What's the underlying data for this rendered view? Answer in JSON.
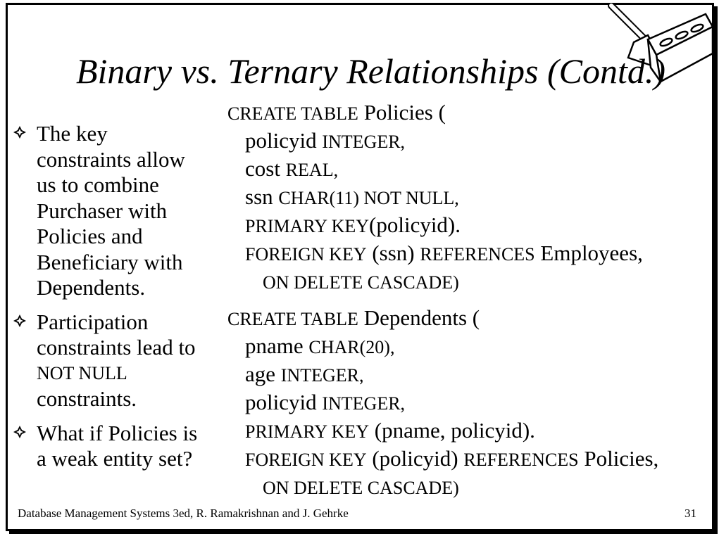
{
  "slide": {
    "title": "Binary vs. Ternary Relationships (Contd.)",
    "bullets": [
      {
        "lines": [
          "The key",
          "constraints allow",
          "us to combine",
          "Purchaser with",
          "Policies and",
          "Beneficiary with",
          "Dependents."
        ]
      },
      {
        "lines": [
          "Participation",
          "constraints lead to"
        ],
        "smallcaps_line": "NOT NULL",
        "after_lines": [
          "constraints."
        ]
      },
      {
        "lines": [
          "What if Policies is",
          "a weak entity set?"
        ]
      }
    ],
    "code1": {
      "create_kw": "CREATE TABLE",
      "table": "Policies (",
      "col1_name": "policyid",
      "col1_type": "INTEGER,",
      "col2_name": "cost",
      "col2_type": "REAL,",
      "col3_name": "ssn",
      "col3_type": "CHAR(11)  NOT NULL,",
      "pk_kw": "PRIMARY KEY",
      "pk_cols": "(policyid).",
      "fk_kw": "FOREIGN KEY",
      "fk_cols": "(ssn)",
      "ref_kw": "REFERENCES",
      "ref_table": "Employees,",
      "on_delete": "ON DELETE CASCADE)"
    },
    "code2": {
      "create_kw": "CREATE TABLE",
      "table": "Dependents (",
      "col1_name": "pname",
      "col1_type": "CHAR(20),",
      "col2_name": "age",
      "col2_type": "INTEGER,",
      "col3_name": "policyid",
      "col3_type": "INTEGER,",
      "pk_kw": "PRIMARY KEY",
      "pk_cols": "(pname, policyid).",
      "fk_kw": "FOREIGN KEY",
      "fk_cols": "(policyid)",
      "ref_kw": "REFERENCES",
      "ref_table": "Policies,",
      "on_delete": "ON DELETE CASCADE)"
    },
    "footer": "Database Management Systems 3ed,  R. Ramakrishnan and J. Gehrke",
    "page_number": "31",
    "icons": {
      "bullet": "diamond-bullet-icon",
      "logo": "trowel-brick-logo-icon"
    }
  }
}
